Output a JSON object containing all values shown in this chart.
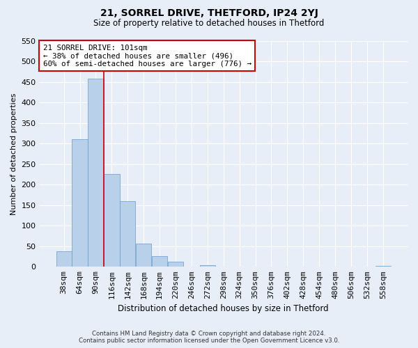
{
  "title1": "21, SORREL DRIVE, THETFORD, IP24 2YJ",
  "title2": "Size of property relative to detached houses in Thetford",
  "xlabel": "Distribution of detached houses by size in Thetford",
  "ylabel": "Number of detached properties",
  "footer1": "Contains HM Land Registry data © Crown copyright and database right 2024.",
  "footer2": "Contains public sector information licensed under the Open Government Licence v3.0.",
  "bin_labels": [
    "38sqm",
    "64sqm",
    "90sqm",
    "116sqm",
    "142sqm",
    "168sqm",
    "194sqm",
    "220sqm",
    "246sqm",
    "272sqm",
    "298sqm",
    "324sqm",
    "350sqm",
    "376sqm",
    "402sqm",
    "428sqm",
    "454sqm",
    "480sqm",
    "506sqm",
    "532sqm",
    "558sqm"
  ],
  "bar_values": [
    38,
    311,
    458,
    226,
    160,
    56,
    26,
    12,
    0,
    4,
    0,
    0,
    0,
    0,
    0,
    0,
    0,
    0,
    0,
    0,
    2
  ],
  "bar_color": "#b8d0ea",
  "bar_edge_color": "#6699cc",
  "vline_color": "#cc0000",
  "annotation_title": "21 SORREL DRIVE: 101sqm",
  "annotation_line1": "← 38% of detached houses are smaller (496)",
  "annotation_line2": "60% of semi-detached houses are larger (776) →",
  "annotation_box_facecolor": "white",
  "annotation_box_edgecolor": "#cc0000",
  "ylim": [
    0,
    550
  ],
  "yticks": [
    0,
    50,
    100,
    150,
    200,
    250,
    300,
    350,
    400,
    450,
    500,
    550
  ],
  "background_color": "#e8eef8",
  "plot_background_color": "#e8eef8",
  "grid_color": "white"
}
